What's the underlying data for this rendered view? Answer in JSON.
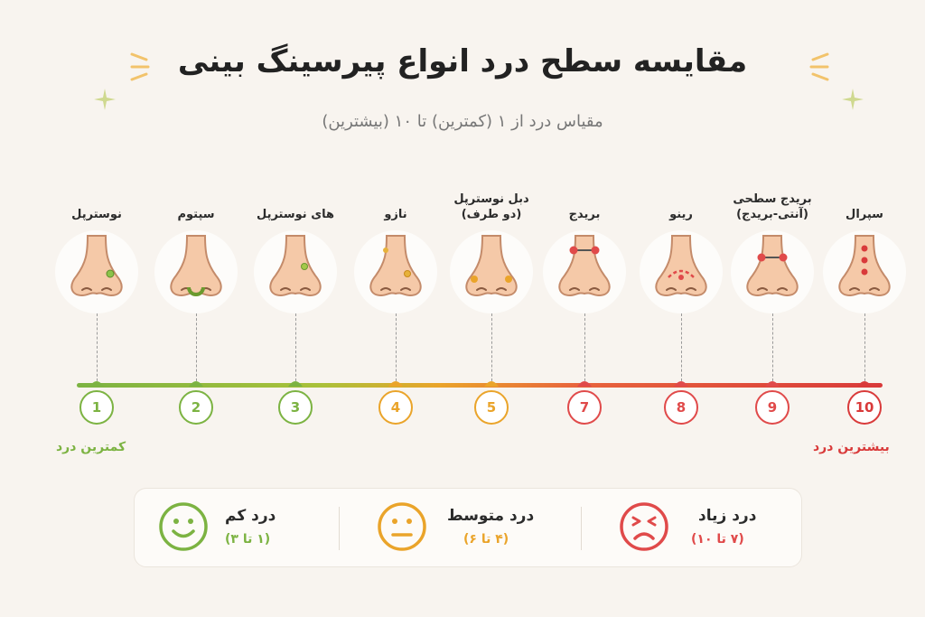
{
  "title": "مقایسه سطح درد انواع پیرسینگ بینی",
  "subtitle": "مقیاس درد از ۱ (کمترین) تا ۱۰ (بیشترین)",
  "piercings": [
    {
      "name": "نوسترپل",
      "line2": "",
      "level": "1",
      "color": "#7cb342"
    },
    {
      "name": "سپتوم",
      "line2": "",
      "level": "2",
      "color": "#7cb342"
    },
    {
      "name": "های نوسترپل",
      "line2": "",
      "level": "3",
      "color": "#7cb342"
    },
    {
      "name": "نازو",
      "line2": "",
      "level": "4",
      "color": "#eaa42a"
    },
    {
      "name": "دبل نوسترپل",
      "line2": "(دو طرف)",
      "level": "5",
      "color": "#eaa42a"
    },
    {
      "name": "بریدج",
      "line2": "",
      "level": "7",
      "color": "#e04a4a"
    },
    {
      "name": "رینو",
      "line2": "",
      "level": "8",
      "color": "#e04a4a"
    },
    {
      "name": "بریدج سطحی",
      "line2": "(آنتی-بریدج)",
      "level": "9",
      "color": "#e04a4a"
    },
    {
      "name": "سپرال",
      "line2": "",
      "level": "10",
      "color": "#d93a3a"
    }
  ],
  "scale": {
    "min_label": "کمترین درد",
    "max_label": "بیشترین درد",
    "min_color": "#7cb342",
    "max_color": "#d93a3a"
  },
  "legend": [
    {
      "title": "درد کم",
      "range": "(۱ تا ۳)",
      "color": "#7cb342",
      "icon": "smile-face-icon"
    },
    {
      "title": "درد متوسط",
      "range": "(۴ تا ۶)",
      "color": "#eaa42a",
      "icon": "neutral-face-icon"
    },
    {
      "title": "درد زیاد",
      "range": "(۷ تا ۱۰)",
      "color": "#e04a4a",
      "icon": "pained-face-icon"
    }
  ]
}
